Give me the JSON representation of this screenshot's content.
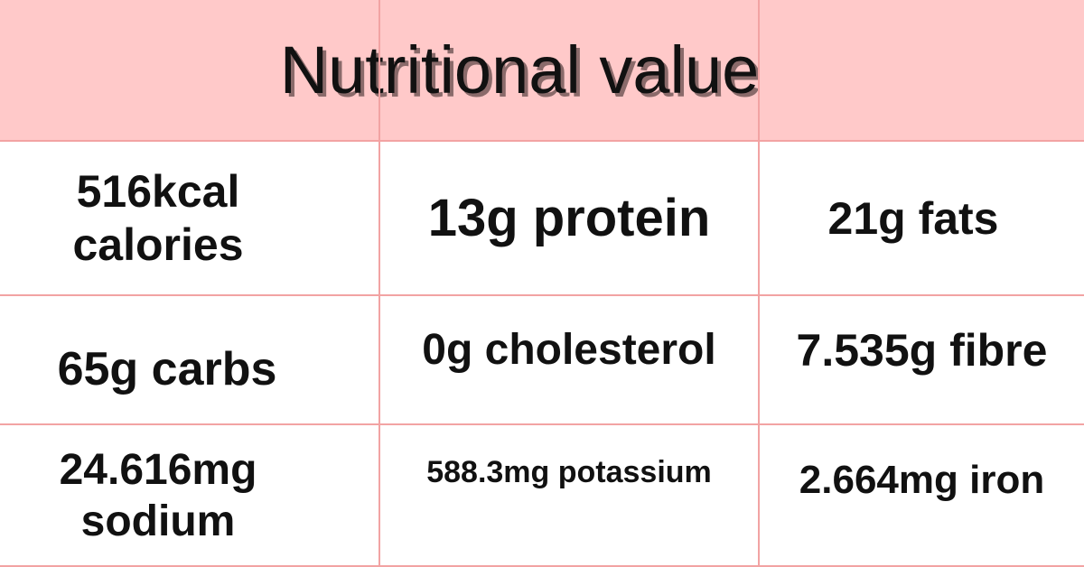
{
  "header": {
    "title": "Nutritional value"
  },
  "table": {
    "rows": [
      [
        "516kcal calories",
        "13g protein",
        "21g fats"
      ],
      [
        "65g carbs",
        "0g cholesterol",
        "7.535g fibre"
      ],
      [
        "24.616mg sodium",
        "588.3mg potassium",
        "2.664mg iron"
      ]
    ]
  }
}
